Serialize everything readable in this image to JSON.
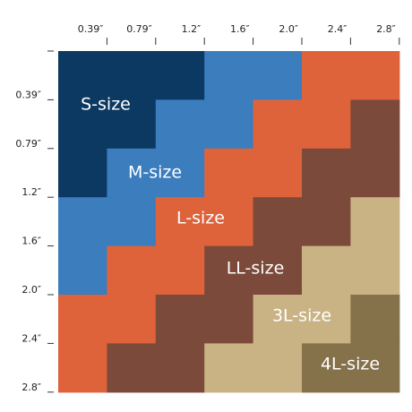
{
  "x_axis": {
    "ticks": [
      "0.39″",
      "0.79″",
      "1.2″",
      "1.6″",
      "2.0″",
      "2.4″",
      "2.8″"
    ]
  },
  "y_axis": {
    "ticks": [
      "0.39″",
      "0.79″",
      "1.2″",
      "1.6″",
      "2.0″",
      "2.4″",
      "2.8″"
    ]
  },
  "sizes": [
    {
      "label": "S-size",
      "color": "#0c3962"
    },
    {
      "label": "M-size",
      "color": "#3b7dbd"
    },
    {
      "label": "L-size",
      "color": "#de633b"
    },
    {
      "label": "LL-size",
      "color": "#7c4a3b"
    },
    {
      "label": "3L-size",
      "color": "#c9b384"
    },
    {
      "label": "4L-size",
      "color": "#85714a"
    }
  ]
}
